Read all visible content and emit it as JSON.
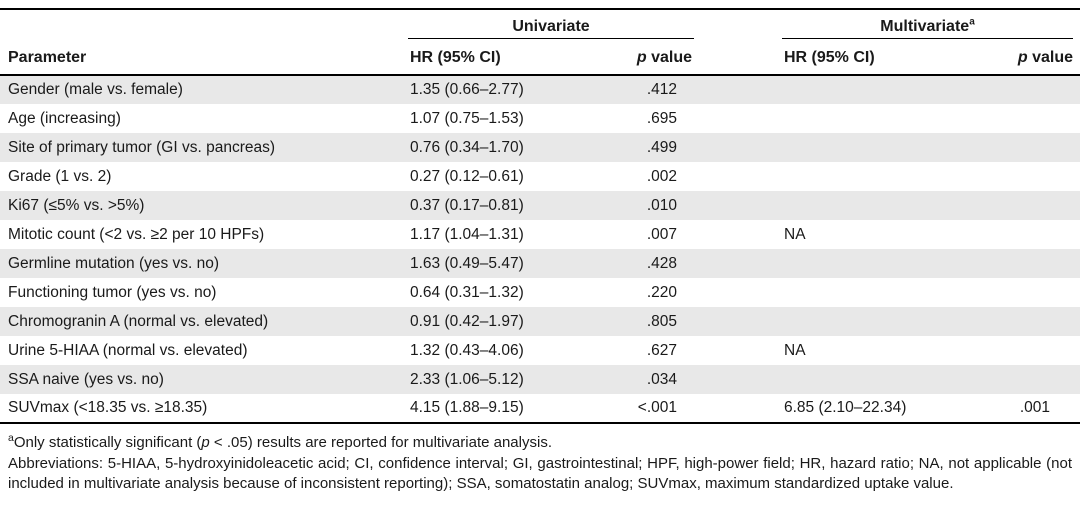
{
  "table": {
    "groups": {
      "univariate": "Univariate",
      "multivariate": "Multivariate",
      "multivariate_sup": "a"
    },
    "headers": {
      "parameter": "Parameter",
      "hr": "HR (95% CI)",
      "p_italic": "p",
      "p_rest": " value"
    },
    "rows": [
      {
        "parameter": "Gender (male vs. female)",
        "uni_hr": "1.35 (0.66–2.77)",
        "uni_p": ".412",
        "multi_hr": "",
        "multi_p": ""
      },
      {
        "parameter": "Age (increasing)",
        "uni_hr": "1.07 (0.75–1.53)",
        "uni_p": ".695",
        "multi_hr": "",
        "multi_p": ""
      },
      {
        "parameter": "Site of primary tumor (GI vs. pancreas)",
        "uni_hr": "0.76 (0.34–1.70)",
        "uni_p": ".499",
        "multi_hr": "",
        "multi_p": ""
      },
      {
        "parameter": "Grade (1 vs. 2)",
        "uni_hr": "0.27 (0.12–0.61)",
        "uni_p": ".002",
        "multi_hr": "",
        "multi_p": ""
      },
      {
        "parameter": "Ki67 (≤5% vs. >5%)",
        "uni_hr": "0.37 (0.17–0.81)",
        "uni_p": ".010",
        "multi_hr": "",
        "multi_p": ""
      },
      {
        "parameter": "Mitotic count (<2 vs. ≥2 per 10 HPFs)",
        "uni_hr": "1.17 (1.04–1.31)",
        "uni_p": ".007",
        "multi_hr": "NA",
        "multi_p": ""
      },
      {
        "parameter": "Germline mutation (yes vs. no)",
        "uni_hr": "1.63 (0.49–5.47)",
        "uni_p": ".428",
        "multi_hr": "",
        "multi_p": ""
      },
      {
        "parameter": "Functioning tumor (yes vs. no)",
        "uni_hr": "0.64 (0.31–1.32)",
        "uni_p": ".220",
        "multi_hr": "",
        "multi_p": ""
      },
      {
        "parameter": "Chromogranin A (normal vs. elevated)",
        "uni_hr": "0.91 (0.42–1.97)",
        "uni_p": ".805",
        "multi_hr": "",
        "multi_p": ""
      },
      {
        "parameter": "Urine 5-HIAA (normal vs. elevated)",
        "uni_hr": "1.32 (0.43–4.06)",
        "uni_p": ".627",
        "multi_hr": "NA",
        "multi_p": ""
      },
      {
        "parameter": "SSA naive (yes vs. no)",
        "uni_hr": "2.33 (1.06–5.12)",
        "uni_p": ".034",
        "multi_hr": "",
        "multi_p": ""
      },
      {
        "parameter": "SUVmax (<18.35 vs. ≥18.35)",
        "uni_hr": "4.15 (1.88–9.15)",
        "uni_p": "<.001",
        "multi_hr": "6.85 (2.10–22.34)",
        "multi_p": ".001"
      }
    ]
  },
  "footnotes": {
    "significance": {
      "marker": "a",
      "pre": "Only statistically significant (",
      "p": "p",
      "post": " < .05) results are reported for multivariate analysis."
    },
    "abbreviations": "Abbreviations: 5-HIAA, 5-hydroxyinidoleacetic acid; CI, confidence interval; GI, gastrointestinal; HPF, high-power field; HR, hazard ratio; NA, not applicable (not included in multivariate analysis because of inconsistent reporting); SSA, somatostatin analog; SUVmax, maximum standardized uptake value."
  },
  "colors": {
    "stripe": "#e8e8e8",
    "rule": "#000000",
    "text": "#1a1a1a"
  }
}
